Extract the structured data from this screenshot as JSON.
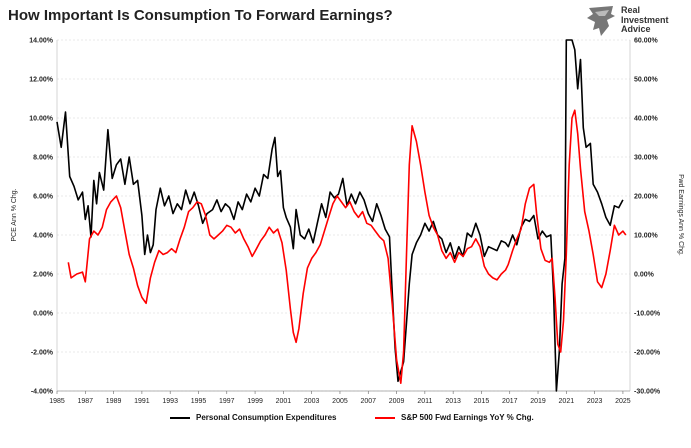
{
  "title": "How Important Is Consumption To Forward Earnings?",
  "brand": {
    "line1": "Real",
    "line2": "Investment",
    "line3": "Advice"
  },
  "chart_data": {
    "type": "line",
    "title": "How Important Is Consumption To Forward Earnings?",
    "ylabel_left": "PCE Ann % Chg.",
    "ylabel_right": "Fwd Earnings Ann % Chg.",
    "xlim": [
      1985,
      2025.5
    ],
    "ylim_left": [
      -4,
      14
    ],
    "ylim_right": [
      -30,
      60
    ],
    "x_ticks": [
      "1985",
      "1987",
      "1989",
      "1991",
      "1993",
      "1995",
      "1997",
      "1999",
      "2001",
      "2003",
      "2005",
      "2007",
      "2009",
      "2011",
      "2013",
      "2015",
      "2017",
      "2019",
      "2021",
      "2023",
      "2025"
    ],
    "y_left_ticks": [
      "-4.00%",
      "-2.00%",
      "0.00%",
      "2.00%",
      "4.00%",
      "6.00%",
      "8.00%",
      "10.00%",
      "12.00%",
      "14.00%"
    ],
    "y_right_ticks": [
      "-30.00%",
      "-20.00%",
      "-10.00%",
      "0.00%",
      "10.00%",
      "20.00%",
      "30.00%",
      "40.00%",
      "50.00%",
      "60.00%"
    ],
    "grid": true,
    "legend_position": "bottom",
    "series": [
      {
        "name": "Personal Consumption Expenditures",
        "axis": "left",
        "color": "#000000",
        "points": [
          [
            1985.0,
            9.8
          ],
          [
            1985.3,
            8.5
          ],
          [
            1985.6,
            10.3
          ],
          [
            1985.9,
            7.0
          ],
          [
            1986.2,
            6.5
          ],
          [
            1986.5,
            5.8
          ],
          [
            1986.8,
            6.2
          ],
          [
            1987.0,
            4.8
          ],
          [
            1987.2,
            5.5
          ],
          [
            1987.4,
            3.9
          ],
          [
            1987.6,
            6.8
          ],
          [
            1987.8,
            5.6
          ],
          [
            1988.0,
            7.2
          ],
          [
            1988.3,
            6.3
          ],
          [
            1988.6,
            9.4
          ],
          [
            1988.9,
            6.9
          ],
          [
            1989.2,
            7.6
          ],
          [
            1989.5,
            7.9
          ],
          [
            1989.8,
            6.6
          ],
          [
            1990.1,
            8.0
          ],
          [
            1990.4,
            6.6
          ],
          [
            1990.7,
            6.8
          ],
          [
            1991.0,
            5.0
          ],
          [
            1991.2,
            3.0
          ],
          [
            1991.4,
            4.0
          ],
          [
            1991.6,
            3.1
          ],
          [
            1991.8,
            3.5
          ],
          [
            1992.0,
            5.3
          ],
          [
            1992.3,
            6.4
          ],
          [
            1992.6,
            5.5
          ],
          [
            1992.9,
            6.0
          ],
          [
            1993.2,
            5.1
          ],
          [
            1993.5,
            5.6
          ],
          [
            1993.8,
            5.3
          ],
          [
            1994.1,
            6.3
          ],
          [
            1994.4,
            5.6
          ],
          [
            1994.7,
            6.2
          ],
          [
            1995.0,
            5.5
          ],
          [
            1995.3,
            4.6
          ],
          [
            1995.6,
            5.1
          ],
          [
            1996.0,
            5.3
          ],
          [
            1996.3,
            5.8
          ],
          [
            1996.6,
            5.2
          ],
          [
            1996.9,
            5.6
          ],
          [
            1997.2,
            5.4
          ],
          [
            1997.5,
            4.8
          ],
          [
            1997.8,
            5.7
          ],
          [
            1998.1,
            5.3
          ],
          [
            1998.4,
            6.1
          ],
          [
            1998.7,
            5.7
          ],
          [
            1999.0,
            6.4
          ],
          [
            1999.3,
            6.0
          ],
          [
            1999.6,
            7.1
          ],
          [
            1999.9,
            6.9
          ],
          [
            2000.2,
            8.4
          ],
          [
            2000.4,
            9.0
          ],
          [
            2000.6,
            7.0
          ],
          [
            2000.8,
            7.3
          ],
          [
            2001.0,
            5.4
          ],
          [
            2001.2,
            4.9
          ],
          [
            2001.5,
            4.4
          ],
          [
            2001.7,
            3.3
          ],
          [
            2001.9,
            5.3
          ],
          [
            2002.2,
            4.0
          ],
          [
            2002.5,
            3.8
          ],
          [
            2002.8,
            4.3
          ],
          [
            2003.1,
            3.6
          ],
          [
            2003.4,
            4.6
          ],
          [
            2003.7,
            5.6
          ],
          [
            2004.0,
            4.9
          ],
          [
            2004.3,
            6.2
          ],
          [
            2004.6,
            5.9
          ],
          [
            2004.9,
            6.1
          ],
          [
            2005.2,
            6.9
          ],
          [
            2005.5,
            5.5
          ],
          [
            2005.8,
            6.1
          ],
          [
            2006.1,
            5.6
          ],
          [
            2006.4,
            6.2
          ],
          [
            2006.7,
            5.8
          ],
          [
            2007.0,
            5.1
          ],
          [
            2007.3,
            4.7
          ],
          [
            2007.6,
            5.6
          ],
          [
            2007.9,
            5.0
          ],
          [
            2008.2,
            4.3
          ],
          [
            2008.5,
            3.9
          ],
          [
            2008.7,
            1.0
          ],
          [
            2008.9,
            -1.8
          ],
          [
            2009.1,
            -3.5
          ],
          [
            2009.3,
            -3.0
          ],
          [
            2009.5,
            -2.5
          ],
          [
            2009.7,
            -0.5
          ],
          [
            2009.9,
            1.5
          ],
          [
            2010.1,
            3.0
          ],
          [
            2010.4,
            3.6
          ],
          [
            2010.7,
            4.0
          ],
          [
            2011.0,
            4.6
          ],
          [
            2011.3,
            4.2
          ],
          [
            2011.6,
            4.7
          ],
          [
            2011.9,
            4.0
          ],
          [
            2012.2,
            3.8
          ],
          [
            2012.5,
            3.1
          ],
          [
            2012.8,
            3.6
          ],
          [
            2013.1,
            2.8
          ],
          [
            2013.4,
            3.4
          ],
          [
            2013.7,
            2.9
          ],
          [
            2014.0,
            4.1
          ],
          [
            2014.3,
            3.9
          ],
          [
            2014.6,
            4.6
          ],
          [
            2014.9,
            4.0
          ],
          [
            2015.2,
            2.9
          ],
          [
            2015.5,
            3.4
          ],
          [
            2015.8,
            3.3
          ],
          [
            2016.1,
            3.2
          ],
          [
            2016.4,
            3.7
          ],
          [
            2016.7,
            3.6
          ],
          [
            2016.9,
            3.4
          ],
          [
            2017.2,
            4.0
          ],
          [
            2017.5,
            3.5
          ],
          [
            2017.8,
            4.4
          ],
          [
            2018.1,
            4.8
          ],
          [
            2018.4,
            4.7
          ],
          [
            2018.7,
            5.0
          ],
          [
            2019.0,
            3.8
          ],
          [
            2019.3,
            4.2
          ],
          [
            2019.6,
            3.9
          ],
          [
            2019.9,
            4.0
          ],
          [
            2020.1,
            1.0
          ],
          [
            2020.3,
            -4.0
          ],
          [
            2020.5,
            -2.0
          ],
          [
            2020.7,
            1.5
          ],
          [
            2020.9,
            2.8
          ],
          [
            2021.0,
            14.0
          ],
          [
            2021.2,
            17.0
          ],
          [
            2021.4,
            14.0
          ],
          [
            2021.6,
            13.5
          ],
          [
            2021.8,
            11.5
          ],
          [
            2022.0,
            13.0
          ],
          [
            2022.2,
            9.5
          ],
          [
            2022.4,
            8.5
          ],
          [
            2022.7,
            8.7
          ],
          [
            2022.9,
            6.6
          ],
          [
            2023.2,
            6.2
          ],
          [
            2023.5,
            5.6
          ],
          [
            2023.8,
            4.9
          ],
          [
            2024.1,
            4.5
          ],
          [
            2024.4,
            5.5
          ],
          [
            2024.7,
            5.4
          ],
          [
            2025.0,
            5.8
          ]
        ]
      },
      {
        "name": "S&P 500 Fwd Earnings YoY % Chg.",
        "axis": "right",
        "color": "#ff0000",
        "points": [
          [
            1985.8,
            3.0
          ],
          [
            1986.0,
            -1.0
          ],
          [
            1986.4,
            0.0
          ],
          [
            1986.8,
            0.5
          ],
          [
            1987.0,
            -2.0
          ],
          [
            1987.3,
            9.0
          ],
          [
            1987.6,
            11.0
          ],
          [
            1987.9,
            10.0
          ],
          [
            1988.2,
            12.0
          ],
          [
            1988.5,
            16.5
          ],
          [
            1988.8,
            18.5
          ],
          [
            1989.2,
            20.0
          ],
          [
            1989.5,
            17.0
          ],
          [
            1989.8,
            11.0
          ],
          [
            1990.1,
            5.0
          ],
          [
            1990.4,
            1.5
          ],
          [
            1990.7,
            -3.0
          ],
          [
            1991.0,
            -6.0
          ],
          [
            1991.3,
            -7.5
          ],
          [
            1991.6,
            -1.0
          ],
          [
            1991.9,
            3.0
          ],
          [
            1992.2,
            6.0
          ],
          [
            1992.5,
            5.0
          ],
          [
            1992.8,
            5.5
          ],
          [
            1993.1,
            6.5
          ],
          [
            1993.4,
            5.5
          ],
          [
            1993.7,
            9.0
          ],
          [
            1994.0,
            12.0
          ],
          [
            1994.3,
            16.0
          ],
          [
            1994.6,
            17.0
          ],
          [
            1994.9,
            18.5
          ],
          [
            1995.2,
            18.0
          ],
          [
            1995.5,
            15.0
          ],
          [
            1995.8,
            10.0
          ],
          [
            1996.1,
            9.0
          ],
          [
            1996.4,
            10.0
          ],
          [
            1996.7,
            11.0
          ],
          [
            1997.0,
            12.5
          ],
          [
            1997.3,
            12.0
          ],
          [
            1997.6,
            10.5
          ],
          [
            1997.9,
            11.5
          ],
          [
            1998.2,
            9.0
          ],
          [
            1998.5,
            7.0
          ],
          [
            1998.8,
            4.5
          ],
          [
            1999.1,
            6.5
          ],
          [
            1999.4,
            8.5
          ],
          [
            1999.7,
            10.0
          ],
          [
            2000.0,
            12.0
          ],
          [
            2000.3,
            10.5
          ],
          [
            2000.6,
            11.5
          ],
          [
            2000.9,
            8.0
          ],
          [
            2001.2,
            1.0
          ],
          [
            2001.5,
            -9.0
          ],
          [
            2001.7,
            -15.0
          ],
          [
            2001.9,
            -17.5
          ],
          [
            2002.1,
            -14.0
          ],
          [
            2002.4,
            -5.0
          ],
          [
            2002.7,
            1.5
          ],
          [
            2003.0,
            4.0
          ],
          [
            2003.3,
            5.5
          ],
          [
            2003.6,
            7.5
          ],
          [
            2003.9,
            11.0
          ],
          [
            2004.2,
            14.5
          ],
          [
            2004.5,
            18.0
          ],
          [
            2004.8,
            20.0
          ],
          [
            2005.1,
            18.5
          ],
          [
            2005.4,
            17.0
          ],
          [
            2005.7,
            18.5
          ],
          [
            2006.0,
            16.0
          ],
          [
            2006.3,
            14.5
          ],
          [
            2006.6,
            16.0
          ],
          [
            2006.9,
            13.0
          ],
          [
            2007.2,
            12.5
          ],
          [
            2007.5,
            11.0
          ],
          [
            2007.8,
            9.5
          ],
          [
            2008.1,
            8.5
          ],
          [
            2008.4,
            4.0
          ],
          [
            2008.7,
            -8.0
          ],
          [
            2009.0,
            -22.0
          ],
          [
            2009.3,
            -28.0
          ],
          [
            2009.5,
            -20.0
          ],
          [
            2009.7,
            5.0
          ],
          [
            2009.9,
            28.0
          ],
          [
            2010.1,
            38.0
          ],
          [
            2010.4,
            34.0
          ],
          [
            2010.7,
            28.0
          ],
          [
            2011.0,
            21.0
          ],
          [
            2011.3,
            15.0
          ],
          [
            2011.6,
            12.0
          ],
          [
            2011.9,
            10.0
          ],
          [
            2012.2,
            6.0
          ],
          [
            2012.5,
            4.0
          ],
          [
            2012.8,
            5.5
          ],
          [
            2013.1,
            3.0
          ],
          [
            2013.4,
            5.5
          ],
          [
            2013.7,
            4.5
          ],
          [
            2014.0,
            6.5
          ],
          [
            2014.3,
            7.0
          ],
          [
            2014.6,
            9.0
          ],
          [
            2014.9,
            7.0
          ],
          [
            2015.2,
            2.0
          ],
          [
            2015.5,
            0.0
          ],
          [
            2015.8,
            -1.0
          ],
          [
            2016.1,
            -1.5
          ],
          [
            2016.4,
            0.0
          ],
          [
            2016.7,
            1.0
          ],
          [
            2016.9,
            2.5
          ],
          [
            2017.2,
            6.0
          ],
          [
            2017.5,
            9.0
          ],
          [
            2017.8,
            11.5
          ],
          [
            2018.1,
            18.0
          ],
          [
            2018.4,
            22.0
          ],
          [
            2018.7,
            23.0
          ],
          [
            2018.9,
            15.5
          ],
          [
            2019.2,
            6.5
          ],
          [
            2019.5,
            3.5
          ],
          [
            2019.8,
            3.0
          ],
          [
            2020.0,
            4.0
          ],
          [
            2020.2,
            -6.0
          ],
          [
            2020.4,
            -18.0
          ],
          [
            2020.6,
            -20.0
          ],
          [
            2020.8,
            -12.0
          ],
          [
            2021.0,
            5.0
          ],
          [
            2021.2,
            28.0
          ],
          [
            2021.4,
            40.0
          ],
          [
            2021.6,
            42.0
          ],
          [
            2021.8,
            36.0
          ],
          [
            2022.0,
            27.0
          ],
          [
            2022.3,
            16.0
          ],
          [
            2022.6,
            11.0
          ],
          [
            2022.9,
            5.0
          ],
          [
            2023.2,
            -2.0
          ],
          [
            2023.5,
            -3.5
          ],
          [
            2023.8,
            0.0
          ],
          [
            2024.1,
            6.0
          ],
          [
            2024.4,
            12.5
          ],
          [
            2024.7,
            10.0
          ],
          [
            2025.0,
            11.0
          ],
          [
            2025.2,
            10.0
          ]
        ]
      }
    ]
  }
}
